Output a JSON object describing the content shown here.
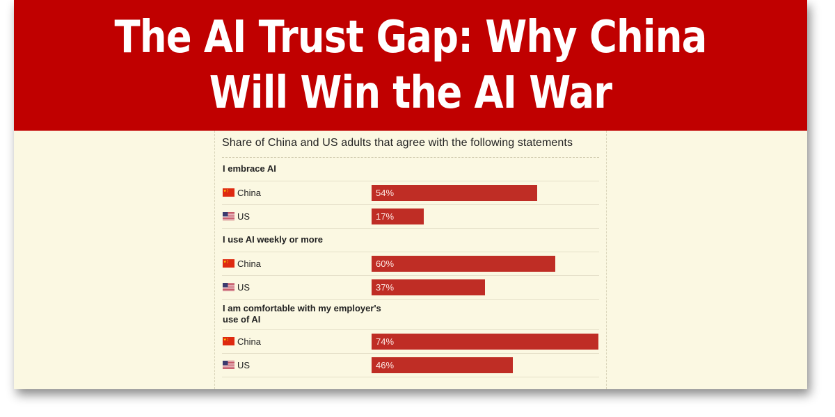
{
  "title": "The AI Trust Gap: Why China Will Win the AI War",
  "chart_data": {
    "type": "bar",
    "orientation": "horizontal",
    "subtitle": "Share of China and US adults that agree with the following statements",
    "xlim": [
      0,
      74
    ],
    "unit": "%",
    "bar_color": "#bf2d25",
    "groups": [
      {
        "label": "I embrace AI",
        "rows": [
          {
            "country": "China",
            "flag": "china-flag-icon",
            "value": 54,
            "label": "54%"
          },
          {
            "country": "US",
            "flag": "us-flag-icon",
            "value": 17,
            "label": "17%"
          }
        ]
      },
      {
        "label": "I use AI weekly or more",
        "rows": [
          {
            "country": "China",
            "flag": "china-flag-icon",
            "value": 60,
            "label": "60%"
          },
          {
            "country": "US",
            "flag": "us-flag-icon",
            "value": 37,
            "label": "37%"
          }
        ]
      },
      {
        "label": "I am comfortable with my employer's use of AI",
        "rows": [
          {
            "country": "China",
            "flag": "china-flag-icon",
            "value": 74,
            "label": "74%"
          },
          {
            "country": "US",
            "flag": "us-flag-icon",
            "value": 46,
            "label": "46%"
          }
        ]
      }
    ]
  },
  "colors": {
    "banner": "#c00000",
    "background": "#fbf8e2",
    "bar": "#bf2d25"
  }
}
